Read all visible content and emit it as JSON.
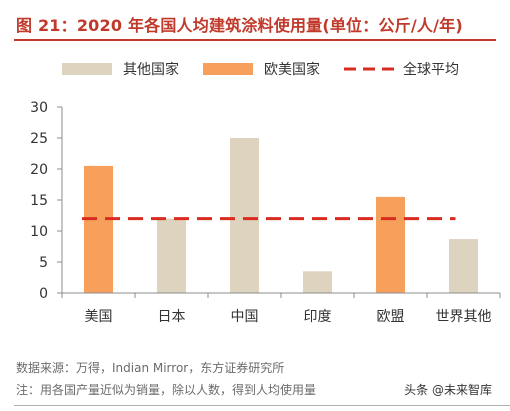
{
  "header": {
    "title": "图 21：2020 年各国人均建筑涂料使用量(单位：公斤/人/年)"
  },
  "footer": {
    "source": "数据来源：万得，Indian Mirror，东方证券研究所",
    "note": "注：用各国产量近似为销量，除以人数，得到人均使用量",
    "watermark": "头条 @未来智库"
  },
  "colors": {
    "title": "#c0392b",
    "other_countries_bar": "#ded3bf",
    "western_countries_bar": "#f7a05b",
    "global_average_line": "#d92b1f"
  },
  "chart_data": {
    "type": "bar",
    "categories": [
      "美国",
      "日本",
      "中国",
      "印度",
      "欧盟",
      "世界其他"
    ],
    "values": [
      20.5,
      12,
      25,
      3.5,
      15.5,
      8.7
    ],
    "groups": [
      "western",
      "other",
      "other",
      "other",
      "western",
      "other"
    ],
    "legend": {
      "other": "其他国家",
      "western": "欧美国家",
      "average": "全球平均"
    },
    "global_average": 12,
    "ylim": [
      0,
      30
    ],
    "yticks": [
      0,
      5,
      10,
      15,
      20,
      25,
      30
    ],
    "grid": false,
    "legend_position": "top"
  }
}
